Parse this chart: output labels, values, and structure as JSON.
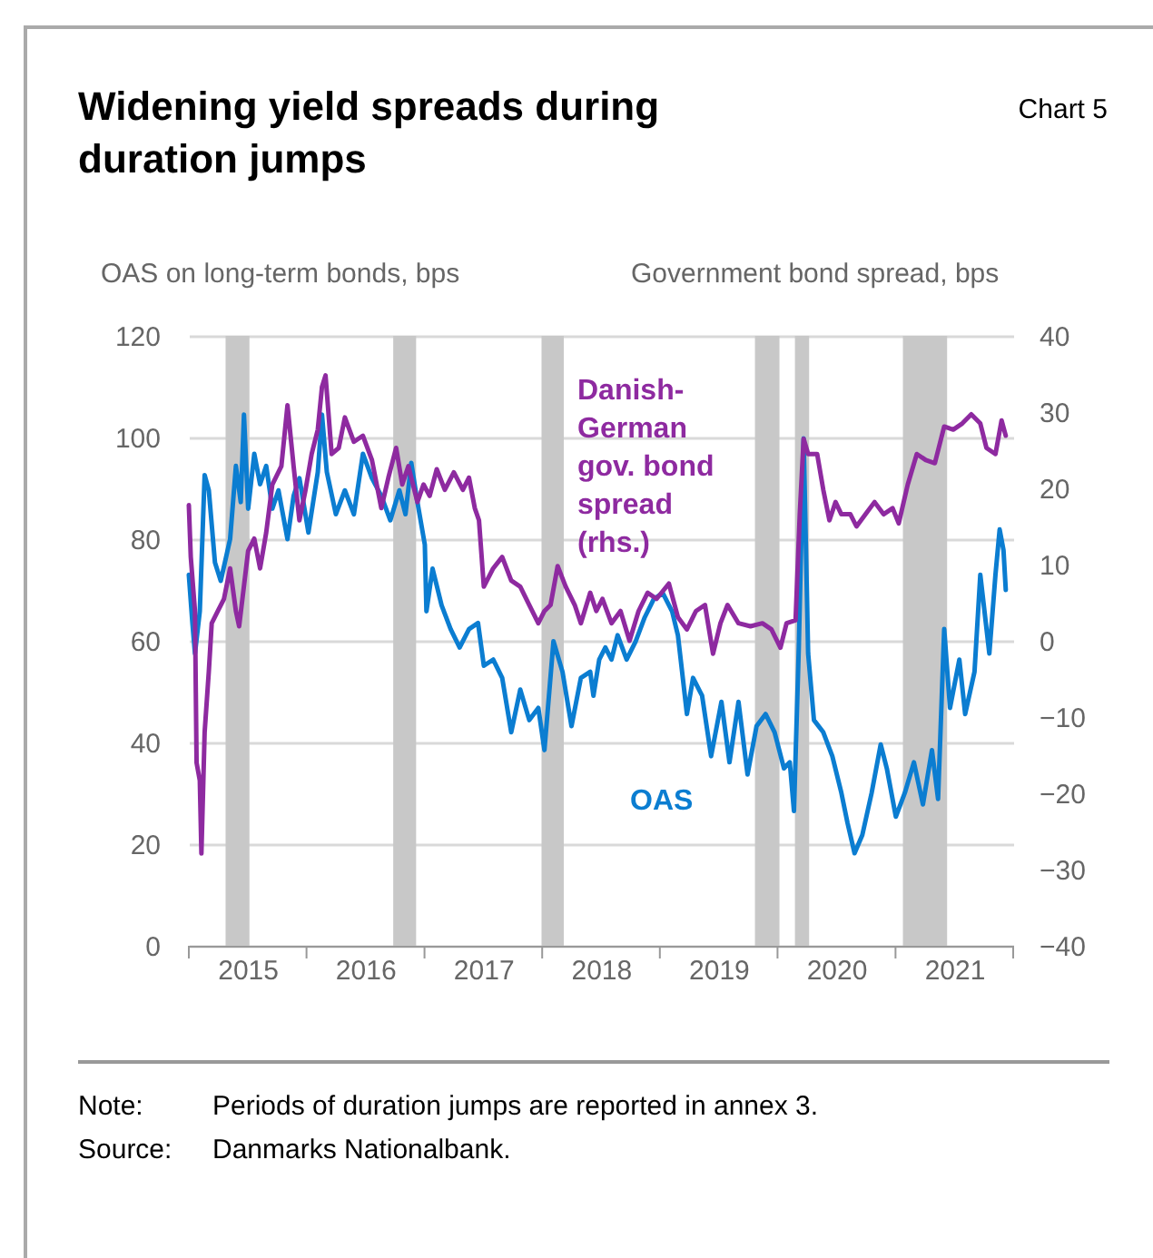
{
  "chart_data": {
    "type": "line",
    "title": "Widening yield spreads during duration jumps",
    "ylabel": "OAS on long-term bonds, bps",
    "y2label": "Government bond spread, bps",
    "annotations": [
      "Chart 5",
      "Note: Periods of duration jumps are reported in annex 3.",
      "Source: Danmarks Nationalbank."
    ],
    "xlim": [
      "2015-01-01",
      "2022-01-01"
    ],
    "xticks": [
      {
        "value": "2015-01-01",
        "label": null
      },
      {
        "value": "2015-07-02",
        "label": "2015"
      },
      {
        "value": "2016-01-01",
        "label": null
      },
      {
        "value": "2016-07-01",
        "label": "2016"
      },
      {
        "value": "2017-01-01",
        "label": null
      },
      {
        "value": "2017-07-02",
        "label": "2017"
      },
      {
        "value": "2018-01-01",
        "label": null
      },
      {
        "value": "2018-07-02",
        "label": "2018"
      },
      {
        "value": "2019-01-01",
        "label": null
      },
      {
        "value": "2019-07-02",
        "label": "2019"
      },
      {
        "value": "2020-01-01",
        "label": null
      },
      {
        "value": "2020-07-01",
        "label": "2020"
      },
      {
        "value": "2021-01-01",
        "label": null
      },
      {
        "value": "2021-07-02",
        "label": "2021"
      },
      {
        "value": "2022-01-01",
        "label": null
      }
    ],
    "ylim": [
      0,
      120
    ],
    "yticks": [
      0,
      20,
      40,
      60,
      80,
      100,
      120
    ],
    "y2lim": [
      -40,
      40
    ],
    "y2ticks": [
      -40,
      -30,
      -20,
      -10,
      0,
      10,
      20,
      30,
      40
    ],
    "grid": "y",
    "bands": [
      {
        "axis": "x",
        "from": "2015-04-25",
        "to": "2015-07-08",
        "color": "#c8c8c8"
      },
      {
        "axis": "x",
        "from": "2016-09-26",
        "to": "2016-12-06",
        "color": "#c8c8c8"
      },
      {
        "axis": "x",
        "from": "2017-12-30",
        "to": "2018-03-09",
        "color": "#c8c8c8"
      },
      {
        "axis": "x",
        "from": "2019-10-23",
        "to": "2020-01-07",
        "color": "#c8c8c8"
      },
      {
        "axis": "x",
        "from": "2020-02-24",
        "to": "2020-04-08",
        "color": "#c8c8c8"
      },
      {
        "axis": "x",
        "from": "2021-01-24",
        "to": "2021-06-10",
        "color": "#c8c8c8"
      }
    ],
    "series": [
      {
        "name": "Danish-German gov. bond spread (rhs.)",
        "color": "#8e2aa0",
        "axis": "y2",
        "x": [
          "2015-01-01",
          "2015-01-07",
          "2015-01-20",
          "2015-01-25",
          "2015-02-04",
          "2015-02-09",
          "2015-02-19",
          "2015-03-04",
          "2015-03-13",
          "2015-04-01",
          "2015-04-20",
          "2015-05-09",
          "2015-05-27",
          "2015-06-06",
          "2015-07-04",
          "2015-07-23",
          "2015-08-10",
          "2015-08-29",
          "2015-09-17",
          "2015-10-15",
          "2015-11-03",
          "2015-11-22",
          "2015-12-10",
          "2015-12-29",
          "2016-01-17",
          "2016-02-05",
          "2016-02-18",
          "2016-02-29",
          "2016-03-19",
          "2016-04-10",
          "2016-04-29",
          "2016-05-27",
          "2016-06-24",
          "2016-07-22",
          "2016-08-20",
          "2016-09-11",
          "2016-10-05",
          "2016-10-24",
          "2016-11-12",
          "2016-12-10",
          "2016-12-29",
          "2017-01-17",
          "2017-02-08",
          "2017-03-05",
          "2017-04-02",
          "2017-04-30",
          "2017-05-19",
          "2017-06-06",
          "2017-06-19",
          "2017-07-04",
          "2017-08-02",
          "2017-08-30",
          "2017-09-27",
          "2017-10-25",
          "2017-11-22",
          "2017-12-20",
          "2018-01-08",
          "2018-01-27",
          "2018-02-18",
          "2018-03-15",
          "2018-04-12",
          "2018-05-01",
          "2018-05-30",
          "2018-06-18",
          "2018-07-07",
          "2018-08-04",
          "2018-09-01",
          "2018-09-29",
          "2018-10-27",
          "2018-11-24",
          "2018-12-22",
          "2019-01-29",
          "2019-02-26",
          "2019-03-26",
          "2019-04-23",
          "2019-05-21",
          "2019-06-15",
          "2019-07-08",
          "2019-07-30",
          "2019-09-02",
          "2019-10-09",
          "2019-11-15",
          "2019-12-13",
          "2020-01-10",
          "2020-01-29",
          "2020-02-26",
          "2020-03-10",
          "2020-03-22",
          "2020-04-05",
          "2020-05-03",
          "2020-05-22",
          "2020-06-10",
          "2020-06-29",
          "2020-07-17",
          "2020-08-14",
          "2020-09-02",
          "2020-09-30",
          "2020-10-28",
          "2020-11-25",
          "2020-12-23",
          "2021-01-11",
          "2021-02-08",
          "2021-03-08",
          "2021-04-05",
          "2021-05-03",
          "2021-06-01",
          "2021-06-29",
          "2021-07-27",
          "2021-08-24",
          "2021-09-21",
          "2021-10-10",
          "2021-11-07",
          "2021-11-26",
          "2021-12-09"
        ],
        "values": [
          17.8,
          11,
          3.9,
          -16,
          -18.3,
          -27.9,
          -12,
          -4,
          2.3,
          3.9,
          5.5,
          9.5,
          3.9,
          1.9,
          11.8,
          13.4,
          9.5,
          14.2,
          20.5,
          22.9,
          30.9,
          22.9,
          15.8,
          19.8,
          24.5,
          27.7,
          33.3,
          34.8,
          24.5,
          25.3,
          29.3,
          26.1,
          26.9,
          23.7,
          17.4,
          21.4,
          25.3,
          20.5,
          22.9,
          18.2,
          20.5,
          19,
          22.5,
          19.8,
          22.1,
          19.8,
          21.4,
          17.4,
          15.8,
          7.1,
          9.5,
          11,
          7.9,
          7.1,
          4.7,
          2.3,
          3.9,
          4.7,
          9.8,
          7.1,
          4.7,
          2.3,
          6.3,
          3.9,
          5.5,
          2.3,
          3.9,
          0,
          3.9,
          6.3,
          5.5,
          7.5,
          3.1,
          1.5,
          3.9,
          4.7,
          -1.7,
          2.3,
          4.7,
          2.3,
          1.9,
          2.3,
          1.5,
          -0.9,
          2.3,
          2.7,
          16.6,
          26.5,
          24.5,
          24.5,
          19.8,
          15.8,
          18.2,
          16.6,
          16.6,
          15,
          16.6,
          18.2,
          16.6,
          17.4,
          15.4,
          20.5,
          24.5,
          23.7,
          23.3,
          28.1,
          27.7,
          28.5,
          29.7,
          28.5,
          25.3,
          24.5,
          28.9,
          26.9
        ]
      },
      {
        "name": "OAS",
        "color": "#0b7dd1",
        "x": [
          "2015-01-01",
          "2015-01-12",
          "2015-01-20",
          "2015-02-04",
          "2015-02-19",
          "2015-03-04",
          "2015-03-23",
          "2015-04-10",
          "2015-05-09",
          "2015-05-27",
          "2015-06-11",
          "2015-06-21",
          "2015-07-04",
          "2015-07-23",
          "2015-08-10",
          "2015-08-29",
          "2015-09-17",
          "2015-10-06",
          "2015-11-03",
          "2015-11-22",
          "2015-12-10",
          "2016-01-07",
          "2016-02-05",
          "2016-02-18",
          "2016-03-04",
          "2016-04-01",
          "2016-04-29",
          "2016-05-27",
          "2016-06-24",
          "2016-07-22",
          "2016-08-20",
          "2016-09-17",
          "2016-10-15",
          "2016-11-03",
          "2016-11-21",
          "2016-12-10",
          "2017-01-02",
          "2017-01-07",
          "2017-01-26",
          "2017-02-23",
          "2017-03-23",
          "2017-04-20",
          "2017-05-19",
          "2017-06-16",
          "2017-07-04",
          "2017-08-02",
          "2017-08-30",
          "2017-09-27",
          "2017-10-25",
          "2017-11-22",
          "2017-12-20",
          "2018-01-08",
          "2018-02-05",
          "2018-03-05",
          "2018-04-02",
          "2018-05-01",
          "2018-05-30",
          "2018-06-09",
          "2018-06-27",
          "2018-07-16",
          "2018-08-04",
          "2018-08-23",
          "2018-09-20",
          "2018-10-18",
          "2018-11-15",
          "2018-12-13",
          "2019-01-10",
          "2019-02-08",
          "2019-02-26",
          "2019-03-26",
          "2019-04-14",
          "2019-05-12",
          "2019-06-09",
          "2019-07-11",
          "2019-08-05",
          "2019-09-02",
          "2019-09-30",
          "2019-10-28",
          "2019-11-25",
          "2019-12-23",
          "2020-01-21",
          "2020-02-08",
          "2020-02-21",
          "2020-03-07",
          "2020-03-22",
          "2020-04-05",
          "2020-04-23",
          "2020-05-22",
          "2020-06-19",
          "2020-07-17",
          "2020-08-05",
          "2020-08-27",
          "2020-09-20",
          "2020-10-19",
          "2020-11-16",
          "2020-12-05",
          "2021-01-02",
          "2021-01-30",
          "2021-02-27",
          "2021-03-27",
          "2021-04-24",
          "2021-05-13",
          "2021-06-01",
          "2021-06-19",
          "2021-07-18",
          "2021-08-05",
          "2021-09-03",
          "2021-09-21",
          "2021-10-19",
          "2021-11-07",
          "2021-11-20",
          "2021-12-02",
          "2021-12-09"
        ],
        "values": [
          73,
          63.5,
          57.5,
          65.8,
          92.6,
          89.6,
          75.4,
          71.8,
          80,
          94.4,
          87.3,
          104.5,
          86,
          96.8,
          90.8,
          94.4,
          86,
          89.6,
          80,
          88.5,
          92,
          81.3,
          93.2,
          104.5,
          93.2,
          84.9,
          89.6,
          84.9,
          96.8,
          92,
          88.5,
          83.7,
          89.6,
          84.9,
          95,
          87.3,
          78.9,
          65.8,
          74.2,
          67,
          62.3,
          58.7,
          62.3,
          63.5,
          55.1,
          56.3,
          52.7,
          42,
          50.4,
          44.4,
          46.8,
          38.5,
          59.9,
          53.9,
          43.2,
          52.7,
          53.9,
          49.2,
          56.3,
          58.7,
          56.3,
          61.1,
          56.3,
          59.9,
          64.6,
          68.2,
          69.4,
          65.8,
          61.1,
          45.6,
          52.7,
          49.2,
          37.3,
          48,
          36.1,
          48,
          33.7,
          43.2,
          45.6,
          42,
          34.9,
          36.1,
          26.5,
          58.7,
          99.8,
          57.5,
          44.4,
          42,
          37.3,
          30.1,
          24.2,
          18.2,
          21.8,
          30.1,
          39.6,
          34.9,
          25.4,
          30.1,
          36.1,
          27.8,
          38.5,
          28.9,
          62.3,
          46.8,
          56.3,
          45.6,
          53.9,
          73,
          57.5,
          73,
          81.9,
          77.8,
          70
        ]
      }
    ]
  }
}
